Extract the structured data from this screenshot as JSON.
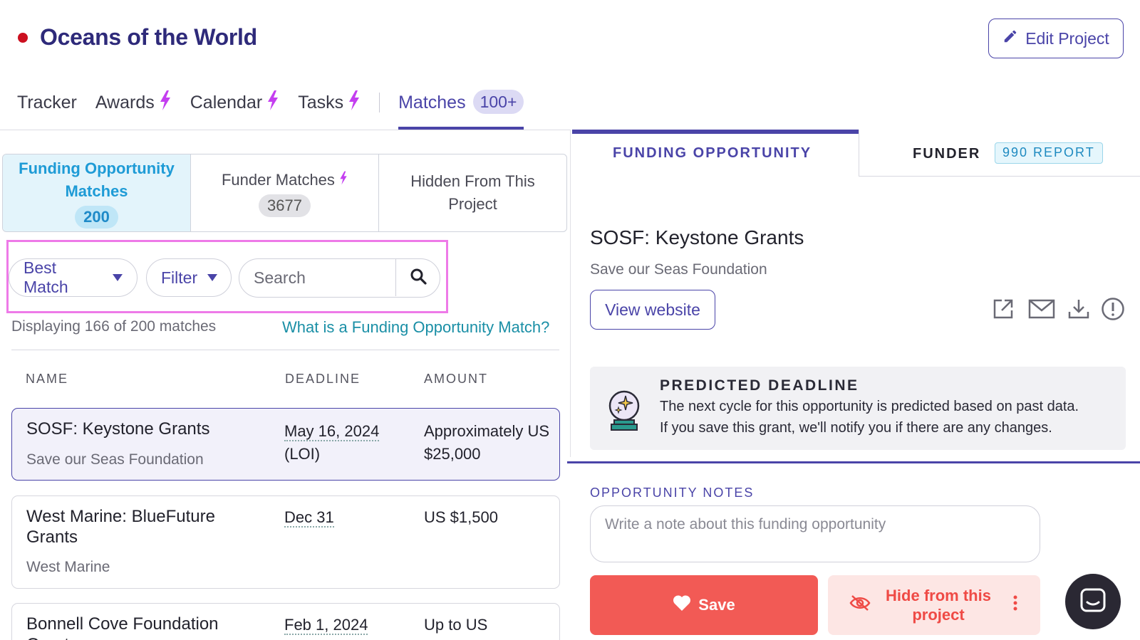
{
  "project": {
    "title": "Oceans of the World",
    "status_color": "#cc1020",
    "edit_label": "Edit Project"
  },
  "nav": {
    "tabs": [
      {
        "label": "Tracker",
        "icon": null
      },
      {
        "label": "Awards",
        "icon": "bolt-icon"
      },
      {
        "label": "Calendar",
        "icon": "bolt-icon"
      },
      {
        "label": "Tasks",
        "icon": "bolt-icon"
      }
    ],
    "active": {
      "label": "Matches",
      "count": "100+"
    }
  },
  "subtabs": [
    {
      "label": "Funding Opportunity Matches",
      "count": "200",
      "active": true
    },
    {
      "label": "Funder Matches",
      "count": "3677",
      "active": false,
      "icon": "bolt-icon"
    },
    {
      "label": "Hidden From This Project",
      "active": false
    }
  ],
  "controls": {
    "sort_label": "Best Match",
    "filter_label": "Filter",
    "search_placeholder": "Search"
  },
  "results": {
    "displaying": "Displaying 166 of 200 matches",
    "help_link": "What is a Funding Opportunity Match?",
    "columns": {
      "name": "NAME",
      "deadline": "DEADLINE",
      "amount": "AMOUNT"
    },
    "rows": [
      {
        "name": "SOSF: Keystone Grants",
        "org": "Save our Seas Foundation",
        "deadline": "May 16, 2024",
        "deadline_note": "(LOI)",
        "amount": "Approximately US $25,000"
      },
      {
        "name": "West Marine: BlueFuture Grants",
        "org": "West Marine",
        "deadline": "Dec 31",
        "deadline_note": "",
        "amount": "US $1,500"
      },
      {
        "name": "Bonnell Cove Foundation Grant",
        "org": "",
        "deadline": "Feb 1, 2024",
        "deadline_note": "",
        "amount": "Up to US"
      }
    ]
  },
  "detail": {
    "tab_active": "FUNDING OPPORTUNITY",
    "tab_funder": "FUNDER",
    "tab_badge": "990 REPORT",
    "title": "SOSF: Keystone Grants",
    "org": "Save our Seas Foundation",
    "view_website": "View website",
    "icons": [
      "external-link-icon",
      "mail-icon",
      "download-icon",
      "info-icon"
    ],
    "predicted": {
      "title": "PREDICTED DEADLINE",
      "line1": "The next cycle for this opportunity is predicted based on past data.",
      "line2": "If you save this grant, we'll notify you if there are any changes."
    },
    "notes_label": "OPPORTUNITY NOTES",
    "notes_placeholder": "Write a note about this funding opportunity",
    "save_label": "Save",
    "hide_label": "Hide from this project"
  },
  "colors": {
    "accent": "#4a44a8",
    "save": "#f25a55",
    "highlight": "#ee7ae8",
    "active_tab_bg": "#e3f4fb"
  }
}
